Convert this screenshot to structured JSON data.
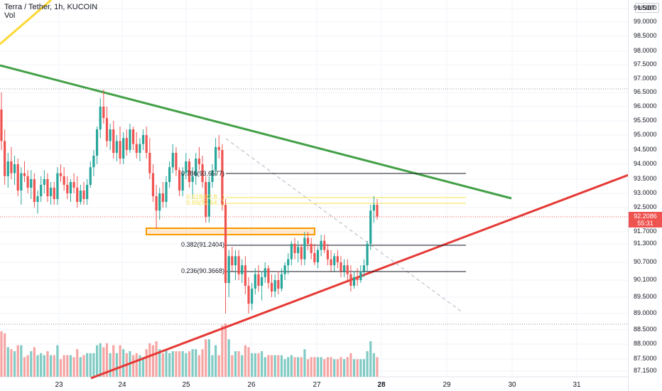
{
  "header": {
    "symbol_line": "Terra / Tether, 1h, KUCOIN",
    "vol_label": "Vol"
  },
  "currency_button": "USDT",
  "y_axis_labels": [
    "99.5000",
    "99.0000",
    "98.5000",
    "98.0000",
    "97.5000",
    "97.0000",
    "96.5000",
    "96.0000",
    "95.5000",
    "95.0000",
    "94.5000",
    "94.0000",
    "93.5000",
    "93.0000",
    "92.5000",
    "91.7000",
    "91.3000",
    "90.7000",
    "90.1000",
    "89.5000",
    "89.0000",
    "88.5000",
    "88.0000",
    "87.5000",
    "87.1500"
  ],
  "x_axis_labels": [
    {
      "text": "23",
      "bold": false
    },
    {
      "text": "24",
      "bold": false
    },
    {
      "text": "25",
      "bold": false
    },
    {
      "text": "26",
      "bold": false
    },
    {
      "text": "27",
      "bold": false
    },
    {
      "text": "28",
      "bold": true
    },
    {
      "text": "29",
      "bold": false
    },
    {
      "text": "30",
      "bold": false
    },
    {
      "text": "31",
      "bold": false
    }
  ],
  "current_price": {
    "value": "92.2086",
    "countdown": "55:31"
  },
  "fib_labels": {
    "f786": "0.786(93.6577)",
    "f618": "0.618(92.8...)",
    "f65": "0.65(92.64...)",
    "f382": "0.382(91.2404)",
    "f236": "0.236(90.3668)"
  },
  "colors": {
    "up": "#26a69a",
    "down": "#ef5350",
    "vol_up": "#80cbc4",
    "vol_down": "#f5a5a3",
    "trend_green": "#43a047",
    "trend_red": "#e53935",
    "trend_yellow": "#fdd835",
    "fib_yellow": "#f2e14c",
    "box_orange": "#ff9800"
  },
  "chart_data": {
    "type": "candlestick",
    "x_ticks": [
      "23",
      "24",
      "25",
      "26",
      "27",
      "28",
      "29",
      "30",
      "31"
    ],
    "y_range": [
      87.15,
      99.5
    ],
    "current_price": 92.2086,
    "fib_levels": [
      {
        "ratio": 0.786,
        "price": 93.6577
      },
      {
        "ratio": 0.382,
        "price": 91.2404
      },
      {
        "ratio": 0.236,
        "price": 90.3668
      }
    ],
    "candles_ohlc": [
      [
        95.9,
        96.5,
        94.5,
        94.8
      ],
      [
        94.8,
        95.2,
        93.3,
        93.6
      ],
      [
        93.6,
        94.4,
        93.2,
        94.1
      ],
      [
        94.1,
        94.6,
        93.5,
        93.7
      ],
      [
        93.7,
        94.3,
        93.3,
        94.0
      ],
      [
        94.0,
        94.2,
        92.9,
        93.1
      ],
      [
        93.1,
        93.9,
        92.6,
        93.7
      ],
      [
        93.7,
        94.1,
        93.4,
        93.6
      ],
      [
        93.6,
        93.8,
        93.0,
        93.2
      ],
      [
        93.2,
        93.8,
        92.8,
        93.5
      ],
      [
        93.5,
        93.7,
        92.5,
        92.7
      ],
      [
        92.7,
        93.1,
        92.3,
        92.9
      ],
      [
        92.9,
        93.6,
        92.7,
        93.3
      ],
      [
        93.3,
        93.8,
        93.0,
        93.5
      ],
      [
        93.5,
        93.7,
        92.7,
        92.9
      ],
      [
        92.9,
        93.4,
        92.6,
        93.2
      ],
      [
        93.2,
        93.4,
        92.6,
        92.8
      ],
      [
        92.8,
        93.9,
        92.6,
        93.7
      ],
      [
        93.7,
        94.0,
        93.4,
        93.6
      ],
      [
        93.6,
        93.9,
        93.1,
        93.3
      ],
      [
        93.3,
        93.6,
        92.8,
        93.0
      ],
      [
        93.0,
        93.5,
        92.7,
        93.4
      ],
      [
        93.4,
        93.7,
        93.0,
        93.2
      ],
      [
        93.2,
        93.6,
        92.5,
        92.7
      ],
      [
        92.7,
        93.3,
        92.6,
        93.1
      ],
      [
        93.1,
        93.4,
        92.6,
        92.8
      ],
      [
        92.8,
        93.5,
        92.6,
        93.3
      ],
      [
        93.3,
        94.1,
        93.2,
        93.9
      ],
      [
        93.9,
        94.5,
        93.6,
        94.3
      ],
      [
        94.3,
        95.3,
        94.0,
        95.2
      ],
      [
        95.2,
        96.3,
        94.9,
        96.0
      ],
      [
        96.0,
        96.6,
        95.4,
        95.6
      ],
      [
        95.6,
        96.0,
        94.6,
        94.8
      ],
      [
        94.8,
        95.4,
        94.5,
        95.2
      ],
      [
        95.2,
        95.5,
        94.2,
        94.4
      ],
      [
        94.4,
        95.0,
        94.1,
        94.8
      ],
      [
        94.8,
        95.3,
        94.0,
        94.2
      ],
      [
        94.2,
        95.1,
        94.0,
        94.9
      ],
      [
        94.9,
        95.2,
        94.3,
        94.5
      ],
      [
        94.5,
        95.4,
        94.4,
        95.2
      ],
      [
        95.2,
        95.3,
        94.5,
        94.7
      ],
      [
        94.7,
        95.1,
        94.2,
        94.4
      ],
      [
        94.4,
        94.9,
        94.1,
        94.7
      ],
      [
        94.7,
        95.2,
        94.5,
        95.0
      ],
      [
        95.0,
        95.3,
        94.2,
        94.4
      ],
      [
        94.4,
        94.9,
        93.5,
        93.7
      ],
      [
        93.7,
        94.0,
        92.7,
        92.9
      ],
      [
        92.9,
        93.3,
        91.8,
        92.4
      ],
      [
        92.4,
        93.2,
        92.1,
        93.0
      ],
      [
        93.0,
        93.4,
        92.5,
        92.7
      ],
      [
        92.7,
        93.6,
        92.5,
        93.4
      ],
      [
        93.4,
        94.1,
        93.2,
        93.9
      ],
      [
        93.9,
        94.7,
        93.7,
        94.4
      ],
      [
        94.4,
        94.6,
        93.6,
        93.8
      ],
      [
        93.8,
        93.9,
        92.9,
        93.1
      ],
      [
        93.1,
        93.9,
        92.9,
        93.7
      ],
      [
        93.7,
        94.4,
        93.5,
        94.1
      ],
      [
        94.1,
        94.2,
        93.2,
        93.4
      ],
      [
        93.4,
        93.9,
        92.8,
        93.6
      ],
      [
        93.6,
        94.4,
        93.3,
        94.2
      ],
      [
        94.2,
        94.6,
        93.8,
        94.0
      ],
      [
        94.0,
        94.3,
        93.2,
        93.4
      ],
      [
        93.4,
        93.6,
        92.0,
        92.2
      ],
      [
        92.2,
        93.6,
        92.0,
        93.4
      ],
      [
        93.4,
        94.0,
        93.2,
        93.8
      ],
      [
        93.8,
        94.9,
        93.6,
        94.6
      ],
      [
        94.6,
        95.0,
        94.2,
        94.5
      ],
      [
        94.5,
        94.7,
        92.4,
        92.6
      ],
      [
        92.6,
        92.8,
        89.0,
        90.0
      ],
      [
        90.0,
        91.1,
        89.5,
        90.9
      ],
      [
        90.9,
        91.2,
        90.4,
        90.6
      ],
      [
        90.6,
        91.1,
        90.1,
        90.9
      ],
      [
        90.9,
        91.1,
        90.1,
        90.3
      ],
      [
        90.3,
        90.8,
        90.0,
        90.6
      ],
      [
        90.6,
        90.9,
        89.6,
        89.9
      ],
      [
        89.9,
        90.2,
        89.0,
        89.3
      ],
      [
        89.3,
        90.0,
        89.1,
        89.8
      ],
      [
        89.8,
        90.5,
        89.6,
        90.3
      ],
      [
        90.3,
        90.6,
        89.7,
        89.9
      ],
      [
        89.9,
        90.4,
        89.4,
        90.2
      ],
      [
        90.2,
        90.7,
        90.0,
        90.5
      ],
      [
        90.5,
        90.6,
        89.8,
        90.0
      ],
      [
        90.0,
        90.3,
        89.5,
        89.7
      ],
      [
        89.7,
        90.3,
        89.5,
        90.1
      ],
      [
        90.1,
        90.4,
        89.6,
        89.8
      ],
      [
        89.8,
        90.5,
        89.7,
        90.3
      ],
      [
        90.3,
        90.7,
        90.1,
        90.6
      ],
      [
        90.6,
        91.0,
        90.3,
        90.8
      ],
      [
        90.8,
        91.4,
        90.6,
        91.3
      ],
      [
        91.3,
        91.5,
        90.8,
        91.0
      ],
      [
        91.0,
        91.4,
        90.7,
        91.2
      ],
      [
        91.2,
        91.3,
        90.6,
        90.8
      ],
      [
        90.8,
        91.7,
        90.6,
        91.5
      ],
      [
        91.5,
        91.7,
        91.1,
        91.3
      ],
      [
        91.3,
        91.5,
        90.8,
        91.0
      ],
      [
        91.0,
        91.3,
        90.6,
        90.7
      ],
      [
        90.7,
        91.2,
        90.5,
        91.1
      ],
      [
        91.1,
        91.6,
        90.9,
        91.4
      ],
      [
        91.4,
        91.6,
        91.0,
        91.1
      ],
      [
        91.1,
        91.3,
        90.6,
        90.8
      ],
      [
        90.8,
        91.1,
        90.4,
        90.6
      ],
      [
        90.6,
        91.0,
        90.4,
        90.9
      ],
      [
        90.9,
        91.1,
        90.5,
        90.7
      ],
      [
        90.7,
        90.9,
        90.2,
        90.4
      ],
      [
        90.4,
        90.8,
        90.2,
        90.6
      ],
      [
        90.6,
        90.8,
        90.1,
        90.3
      ],
      [
        90.3,
        90.6,
        89.7,
        89.9
      ],
      [
        89.9,
        90.4,
        89.8,
        90.2
      ],
      [
        90.2,
        90.5,
        89.9,
        90.1
      ],
      [
        90.1,
        90.6,
        90.0,
        90.4
      ],
      [
        90.4,
        90.8,
        90.2,
        90.6
      ],
      [
        90.6,
        91.4,
        90.4,
        91.3
      ],
      [
        91.3,
        92.6,
        91.1,
        92.4
      ],
      [
        92.4,
        92.9,
        92.0,
        92.6
      ],
      [
        92.6,
        92.8,
        92.1,
        92.2
      ]
    ]
  }
}
